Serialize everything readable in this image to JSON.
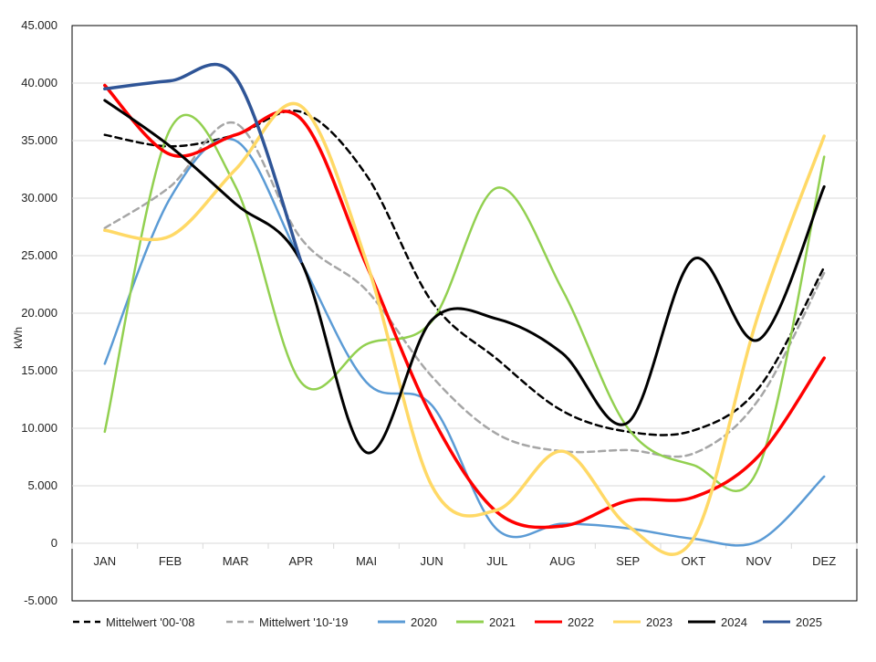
{
  "chart_data": {
    "type": "line",
    "title": "",
    "xlabel": "",
    "ylabel": "kWh",
    "ylim": [
      -5000,
      45000
    ],
    "yticks": [
      -5000,
      0,
      5000,
      10000,
      15000,
      20000,
      25000,
      30000,
      35000,
      40000,
      45000
    ],
    "ytick_labels": [
      "-5.000",
      "0",
      "5.000",
      "10.000",
      "15.000",
      "20.000",
      "25.000",
      "30.000",
      "35.000",
      "40.000",
      "45.000"
    ],
    "categories": [
      "JAN",
      "FEB",
      "MAR",
      "APR",
      "MAI",
      "JUN",
      "JUL",
      "AUG",
      "SEP",
      "OKT",
      "NOV",
      "DEZ"
    ],
    "grid": "horizontal",
    "legend_position": "bottom",
    "series": [
      {
        "name": "Mittelwert '00-'08",
        "color": "#000000",
        "dash": "dashed",
        "values": [
          35500,
          34500,
          35500,
          37500,
          32000,
          21000,
          16000,
          11500,
          9700,
          9800,
          13500,
          24000
        ]
      },
      {
        "name": "Mittelwert '10-'19",
        "color": "#a6a6a6",
        "dash": "dashed",
        "values": [
          27400,
          31000,
          36500,
          26500,
          22000,
          14500,
          9500,
          8000,
          8100,
          7800,
          12500,
          23500
        ]
      },
      {
        "name": "2020",
        "color": "#5b9bd5",
        "dash": "solid",
        "values": [
          15600,
          30000,
          35000,
          24500,
          14000,
          12000,
          1200,
          1700,
          1300,
          400,
          200,
          5800
        ]
      },
      {
        "name": "2021",
        "color": "#92d050",
        "dash": "solid",
        "values": [
          9700,
          36000,
          31000,
          14000,
          17300,
          19300,
          30900,
          22000,
          10000,
          6800,
          6600,
          33600
        ]
      },
      {
        "name": "2022",
        "color": "#ff0000",
        "dash": "solid",
        "values": [
          39800,
          33800,
          35500,
          36900,
          24200,
          11000,
          2700,
          1500,
          3700,
          4000,
          7600,
          16100
        ]
      },
      {
        "name": "2023",
        "color": "#ffd966",
        "dash": "solid",
        "values": [
          27200,
          26700,
          32500,
          38000,
          24500,
          5000,
          2900,
          8000,
          1500,
          400,
          20000,
          35400
        ]
      },
      {
        "name": "2024",
        "color": "#000000",
        "dash": "solid",
        "values": [
          38500,
          34500,
          29500,
          24500,
          7900,
          19400,
          19500,
          16500,
          10500,
          24700,
          17700,
          31000
        ]
      },
      {
        "name": "2025",
        "color": "#2f5597",
        "dash": "solid",
        "values": [
          39500,
          40200,
          40500,
          24500,
          null,
          null,
          null,
          null,
          null,
          null,
          null,
          null
        ]
      }
    ]
  }
}
